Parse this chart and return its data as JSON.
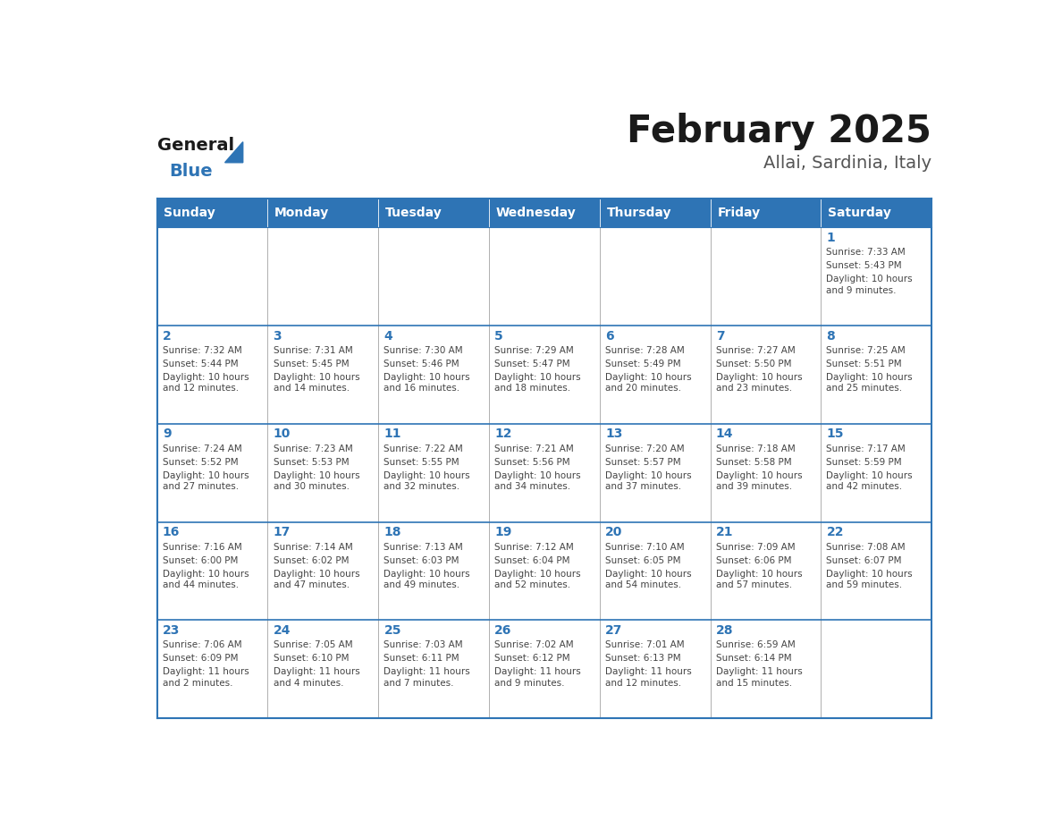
{
  "title": "February 2025",
  "subtitle": "Allai, Sardinia, Italy",
  "days_of_week": [
    "Sunday",
    "Monday",
    "Tuesday",
    "Wednesday",
    "Thursday",
    "Friday",
    "Saturday"
  ],
  "header_bg": "#2E74B5",
  "header_text": "#FFFFFF",
  "border_color": "#2E74B5",
  "title_color": "#1a1a1a",
  "subtitle_color": "#555555",
  "day_number_color": "#2E74B5",
  "cell_text_color": "#444444",
  "grid_line_color": "#AAAAAA",
  "calendar_data": [
    [
      null,
      null,
      null,
      null,
      null,
      null,
      {
        "day": 1,
        "sunrise": "7:33 AM",
        "sunset": "5:43 PM",
        "daylight": "10 hours\nand 9 minutes."
      }
    ],
    [
      {
        "day": 2,
        "sunrise": "7:32 AM",
        "sunset": "5:44 PM",
        "daylight": "10 hours\nand 12 minutes."
      },
      {
        "day": 3,
        "sunrise": "7:31 AM",
        "sunset": "5:45 PM",
        "daylight": "10 hours\nand 14 minutes."
      },
      {
        "day": 4,
        "sunrise": "7:30 AM",
        "sunset": "5:46 PM",
        "daylight": "10 hours\nand 16 minutes."
      },
      {
        "day": 5,
        "sunrise": "7:29 AM",
        "sunset": "5:47 PM",
        "daylight": "10 hours\nand 18 minutes."
      },
      {
        "day": 6,
        "sunrise": "7:28 AM",
        "sunset": "5:49 PM",
        "daylight": "10 hours\nand 20 minutes."
      },
      {
        "day": 7,
        "sunrise": "7:27 AM",
        "sunset": "5:50 PM",
        "daylight": "10 hours\nand 23 minutes."
      },
      {
        "day": 8,
        "sunrise": "7:25 AM",
        "sunset": "5:51 PM",
        "daylight": "10 hours\nand 25 minutes."
      }
    ],
    [
      {
        "day": 9,
        "sunrise": "7:24 AM",
        "sunset": "5:52 PM",
        "daylight": "10 hours\nand 27 minutes."
      },
      {
        "day": 10,
        "sunrise": "7:23 AM",
        "sunset": "5:53 PM",
        "daylight": "10 hours\nand 30 minutes."
      },
      {
        "day": 11,
        "sunrise": "7:22 AM",
        "sunset": "5:55 PM",
        "daylight": "10 hours\nand 32 minutes."
      },
      {
        "day": 12,
        "sunrise": "7:21 AM",
        "sunset": "5:56 PM",
        "daylight": "10 hours\nand 34 minutes."
      },
      {
        "day": 13,
        "sunrise": "7:20 AM",
        "sunset": "5:57 PM",
        "daylight": "10 hours\nand 37 minutes."
      },
      {
        "day": 14,
        "sunrise": "7:18 AM",
        "sunset": "5:58 PM",
        "daylight": "10 hours\nand 39 minutes."
      },
      {
        "day": 15,
        "sunrise": "7:17 AM",
        "sunset": "5:59 PM",
        "daylight": "10 hours\nand 42 minutes."
      }
    ],
    [
      {
        "day": 16,
        "sunrise": "7:16 AM",
        "sunset": "6:00 PM",
        "daylight": "10 hours\nand 44 minutes."
      },
      {
        "day": 17,
        "sunrise": "7:14 AM",
        "sunset": "6:02 PM",
        "daylight": "10 hours\nand 47 minutes."
      },
      {
        "day": 18,
        "sunrise": "7:13 AM",
        "sunset": "6:03 PM",
        "daylight": "10 hours\nand 49 minutes."
      },
      {
        "day": 19,
        "sunrise": "7:12 AM",
        "sunset": "6:04 PM",
        "daylight": "10 hours\nand 52 minutes."
      },
      {
        "day": 20,
        "sunrise": "7:10 AM",
        "sunset": "6:05 PM",
        "daylight": "10 hours\nand 54 minutes."
      },
      {
        "day": 21,
        "sunrise": "7:09 AM",
        "sunset": "6:06 PM",
        "daylight": "10 hours\nand 57 minutes."
      },
      {
        "day": 22,
        "sunrise": "7:08 AM",
        "sunset": "6:07 PM",
        "daylight": "10 hours\nand 59 minutes."
      }
    ],
    [
      {
        "day": 23,
        "sunrise": "7:06 AM",
        "sunset": "6:09 PM",
        "daylight": "11 hours\nand 2 minutes."
      },
      {
        "day": 24,
        "sunrise": "7:05 AM",
        "sunset": "6:10 PM",
        "daylight": "11 hours\nand 4 minutes."
      },
      {
        "day": 25,
        "sunrise": "7:03 AM",
        "sunset": "6:11 PM",
        "daylight": "11 hours\nand 7 minutes."
      },
      {
        "day": 26,
        "sunrise": "7:02 AM",
        "sunset": "6:12 PM",
        "daylight": "11 hours\nand 9 minutes."
      },
      {
        "day": 27,
        "sunrise": "7:01 AM",
        "sunset": "6:13 PM",
        "daylight": "11 hours\nand 12 minutes."
      },
      {
        "day": 28,
        "sunrise": "6:59 AM",
        "sunset": "6:14 PM",
        "daylight": "11 hours\nand 15 minutes."
      },
      null
    ]
  ]
}
